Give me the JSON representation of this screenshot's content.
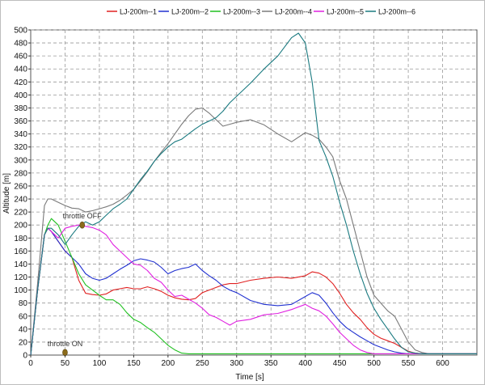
{
  "chart_data": {
    "type": "line",
    "xlabel": "Time [s]",
    "ylabel": "Altitude [m]",
    "xlim": [
      0,
      650
    ],
    "ylim": [
      0,
      500
    ],
    "x_ticks": [
      "0",
      "50",
      "100",
      "150",
      "200",
      "250",
      "300",
      "350",
      "400",
      "450",
      "500",
      "550",
      "600"
    ],
    "y_ticks": [
      "0",
      "20",
      "40",
      "60",
      "80",
      "100",
      "120",
      "140",
      "160",
      "180",
      "200",
      "220",
      "240",
      "260",
      "280",
      "300",
      "320",
      "340",
      "360",
      "380",
      "400",
      "420",
      "440",
      "460",
      "480",
      "500"
    ],
    "grid": true,
    "legend_position": "top",
    "series": [
      {
        "name": "LJ-200m--1",
        "color": "#e02020",
        "x": [
          0,
          10,
          20,
          25,
          30,
          40,
          50,
          60,
          70,
          80,
          90,
          100,
          110,
          120,
          130,
          140,
          150,
          160,
          170,
          180,
          190,
          200,
          210,
          220,
          230,
          240,
          250,
          260,
          270,
          280,
          290,
          300,
          320,
          340,
          360,
          380,
          400,
          410,
          420,
          430,
          440,
          450,
          460,
          470,
          480,
          490,
          500,
          510,
          520,
          530,
          540,
          550,
          560,
          570,
          580,
          590,
          600,
          650
        ],
        "y": [
          0,
          100,
          185,
          195,
          190,
          175,
          160,
          150,
          115,
          95,
          93,
          92,
          94,
          100,
          102,
          104,
          102,
          102,
          105,
          102,
          98,
          92,
          88,
          86,
          85,
          87,
          96,
          100,
          104,
          108,
          110,
          110,
          115,
          118,
          120,
          118,
          122,
          128,
          126,
          120,
          110,
          95,
          78,
          65,
          55,
          42,
          32,
          26,
          22,
          18,
          12,
          6,
          3,
          2,
          2,
          2,
          2,
          2
        ]
      },
      {
        "name": "LJ-200m--2",
        "color": "#2030d0",
        "x": [
          0,
          10,
          20,
          25,
          30,
          40,
          50,
          60,
          70,
          80,
          90,
          100,
          110,
          120,
          130,
          140,
          150,
          160,
          170,
          180,
          190,
          200,
          210,
          220,
          230,
          240,
          250,
          260,
          270,
          280,
          290,
          300,
          320,
          340,
          360,
          380,
          400,
          410,
          420,
          430,
          440,
          450,
          460,
          470,
          480,
          490,
          500,
          510,
          520,
          530,
          540,
          550,
          560,
          570,
          580,
          590,
          600,
          650
        ],
        "y": [
          0,
          100,
          185,
          195,
          190,
          175,
          160,
          150,
          140,
          125,
          118,
          115,
          118,
          125,
          132,
          138,
          145,
          148,
          146,
          143,
          135,
          125,
          130,
          133,
          135,
          140,
          130,
          122,
          115,
          106,
          100,
          96,
          84,
          78,
          76,
          78,
          90,
          96,
          92,
          80,
          65,
          52,
          42,
          35,
          28,
          22,
          16,
          12,
          8,
          5,
          3,
          2,
          2,
          2,
          2,
          2,
          2,
          2
        ]
      },
      {
        "name": "LJ-200m--3",
        "color": "#20c020",
        "x": [
          0,
          10,
          20,
          25,
          30,
          40,
          50,
          60,
          70,
          80,
          90,
          100,
          110,
          120,
          130,
          140,
          150,
          160,
          170,
          180,
          190,
          200,
          210,
          220,
          230,
          240,
          250,
          260,
          270,
          280,
          290,
          300,
          320,
          340,
          360,
          380,
          400,
          650
        ],
        "y": [
          0,
          100,
          185,
          200,
          210,
          200,
          175,
          150,
          125,
          108,
          100,
          92,
          85,
          85,
          78,
          65,
          55,
          50,
          42,
          35,
          25,
          15,
          8,
          3,
          2,
          2,
          2,
          2,
          2,
          2,
          2,
          2,
          2,
          2,
          2,
          2,
          2,
          2
        ]
      },
      {
        "name": "LJ-200m--4",
        "color": "#7a7a7a",
        "x": [
          0,
          10,
          20,
          25,
          30,
          40,
          50,
          60,
          70,
          80,
          90,
          100,
          110,
          120,
          130,
          140,
          150,
          160,
          170,
          180,
          190,
          200,
          210,
          220,
          230,
          240,
          250,
          260,
          270,
          280,
          290,
          300,
          320,
          340,
          360,
          380,
          400,
          410,
          420,
          430,
          440,
          450,
          460,
          470,
          480,
          490,
          500,
          510,
          520,
          530,
          540,
          550,
          560,
          570,
          580,
          590,
          600,
          650
        ],
        "y": [
          0,
          110,
          230,
          240,
          240,
          235,
          230,
          226,
          225,
          220,
          222,
          225,
          228,
          232,
          238,
          246,
          255,
          268,
          282,
          298,
          312,
          325,
          340,
          355,
          368,
          378,
          380,
          372,
          362,
          352,
          355,
          358,
          362,
          354,
          340,
          328,
          342,
          338,
          332,
          320,
          305,
          268,
          240,
          200,
          160,
          120,
          92,
          80,
          68,
          60,
          40,
          20,
          8,
          4,
          2,
          2,
          2,
          2
        ]
      },
      {
        "name": "LJ-200m--5",
        "color": "#e020e0",
        "x": [
          0,
          10,
          20,
          25,
          30,
          40,
          50,
          60,
          70,
          80,
          90,
          100,
          110,
          120,
          130,
          140,
          150,
          160,
          170,
          180,
          190,
          200,
          210,
          220,
          230,
          240,
          250,
          260,
          270,
          280,
          290,
          300,
          320,
          340,
          360,
          380,
          400,
          410,
          420,
          430,
          440,
          450,
          460,
          470,
          480,
          490,
          500,
          510,
          520,
          530,
          540,
          550,
          560,
          570,
          580,
          590,
          600,
          650
        ],
        "y": [
          0,
          100,
          185,
          195,
          190,
          180,
          195,
          198,
          200,
          198,
          196,
          192,
          185,
          170,
          160,
          150,
          140,
          138,
          130,
          118,
          112,
          100,
          90,
          92,
          86,
          80,
          72,
          62,
          58,
          52,
          46,
          52,
          55,
          62,
          64,
          70,
          78,
          72,
          68,
          60,
          48,
          35,
          25,
          15,
          8,
          4,
          2,
          2,
          2,
          2,
          2,
          2,
          2,
          2,
          2,
          2,
          2,
          2
        ]
      },
      {
        "name": "LJ-200m--6",
        "color": "#1a7a80",
        "x": [
          0,
          10,
          20,
          25,
          30,
          40,
          50,
          60,
          70,
          80,
          90,
          100,
          110,
          120,
          130,
          140,
          150,
          160,
          170,
          180,
          190,
          200,
          210,
          220,
          230,
          240,
          250,
          260,
          270,
          280,
          290,
          300,
          320,
          340,
          360,
          380,
          390,
          400,
          410,
          420,
          430,
          440,
          450,
          460,
          470,
          480,
          490,
          500,
          510,
          520,
          530,
          540,
          550,
          560,
          570,
          580,
          590,
          600,
          650
        ],
        "y": [
          0,
          100,
          185,
          195,
          195,
          185,
          170,
          185,
          198,
          205,
          200,
          205,
          215,
          225,
          232,
          240,
          255,
          270,
          283,
          298,
          310,
          320,
          328,
          332,
          340,
          348,
          355,
          360,
          365,
          375,
          388,
          398,
          418,
          440,
          460,
          488,
          495,
          480,
          420,
          330,
          305,
          275,
          235,
          200,
          160,
          125,
          95,
          72,
          55,
          40,
          25,
          12,
          5,
          3,
          2,
          2,
          2,
          2,
          2
        ]
      }
    ],
    "annotations": [
      {
        "text": "throttle OFF",
        "x": 75,
        "y": 200
      },
      {
        "text": "throttle ON",
        "x": 50,
        "y": 4
      }
    ]
  }
}
